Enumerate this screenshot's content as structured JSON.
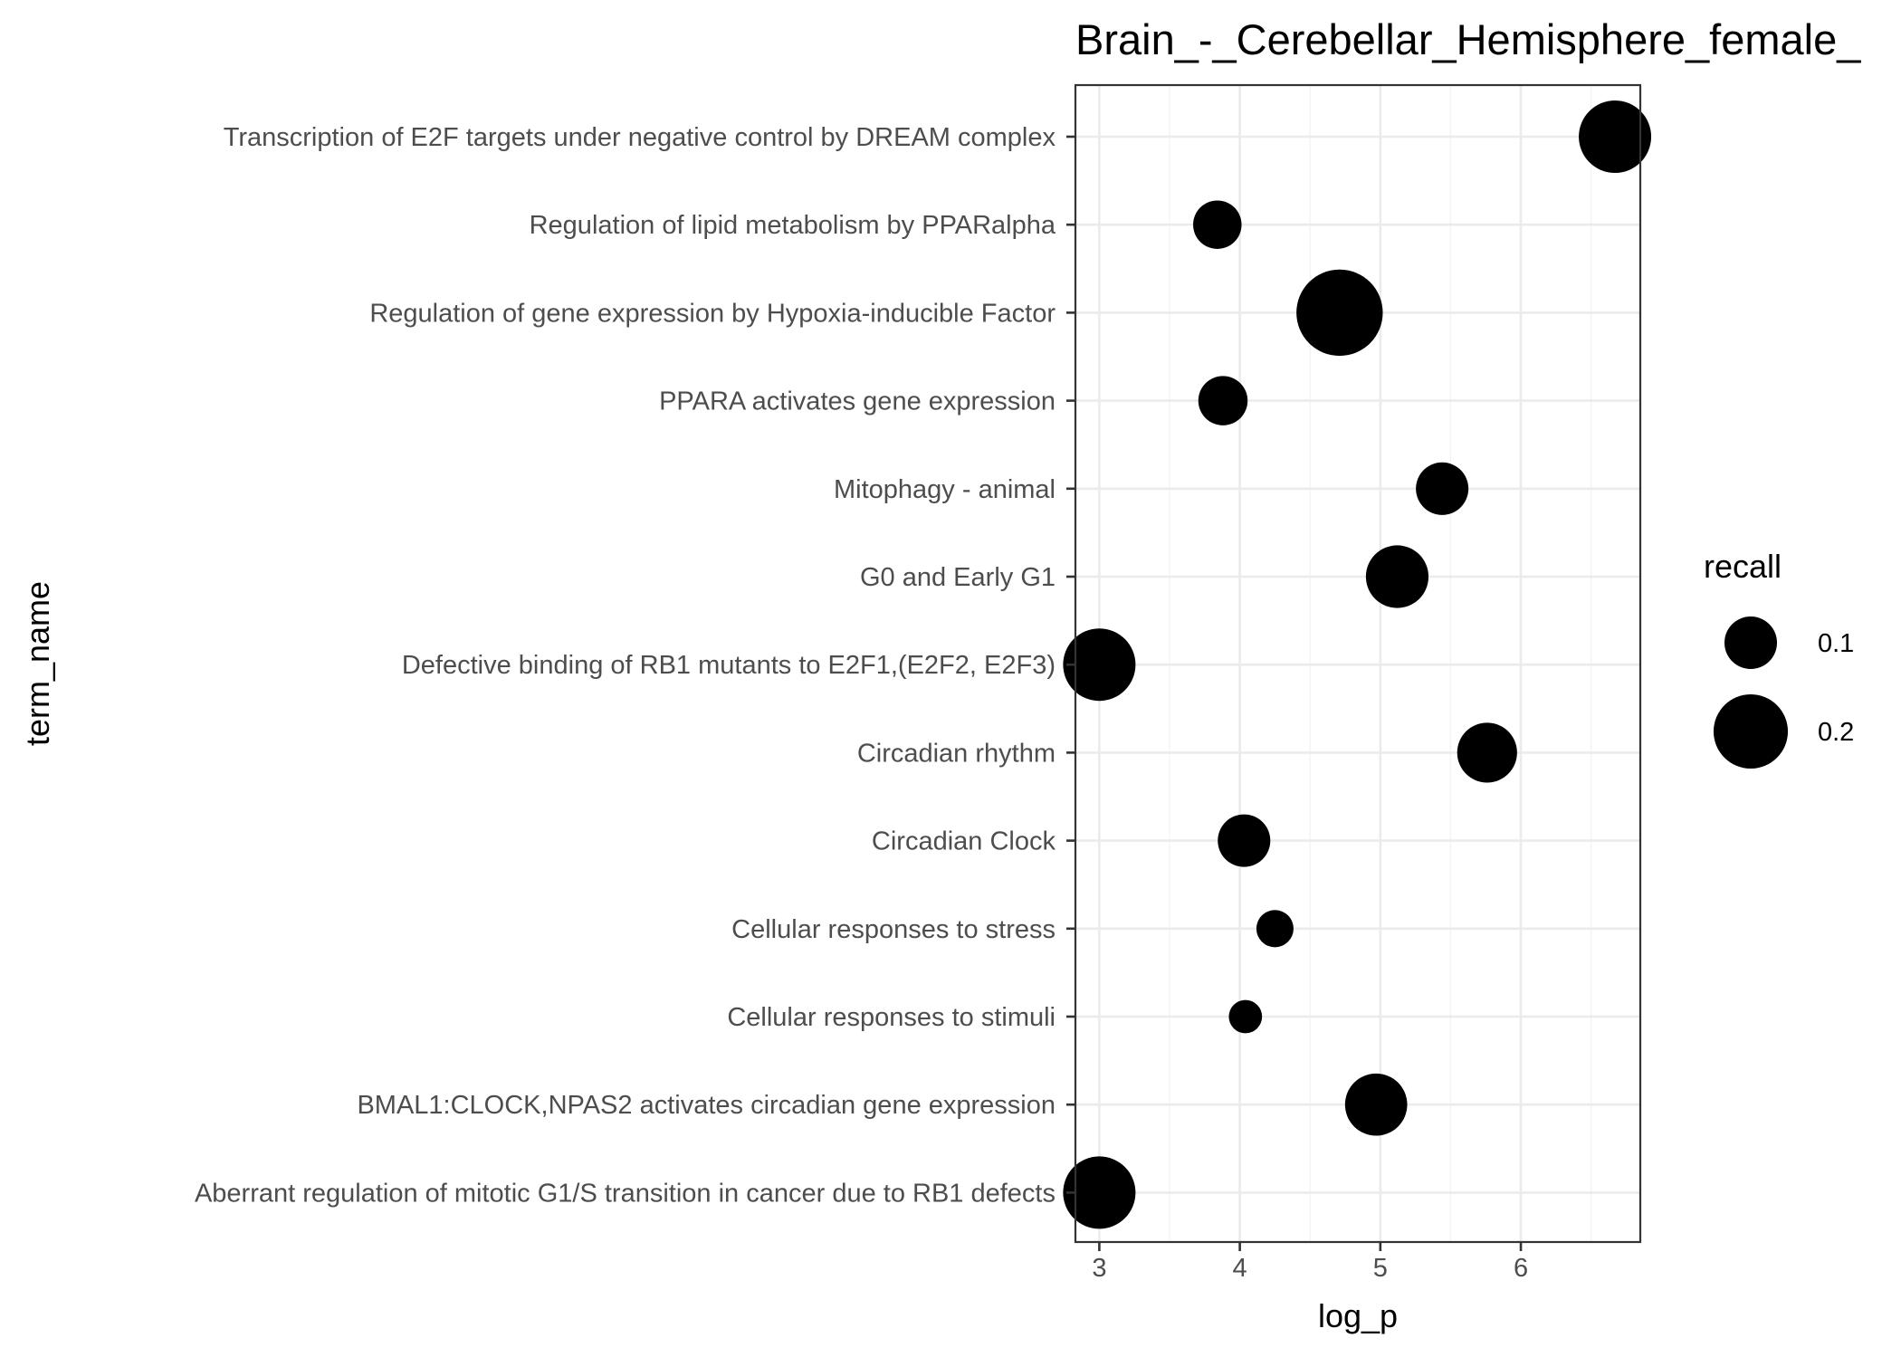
{
  "chart_data": {
    "type": "scatter",
    "title": "Brain_-_Cerebellar_Hemisphere_female_",
    "xlabel": "log_p",
    "ylabel": "term_name",
    "xlim": [
      2.83,
      6.85
    ],
    "x_ticks": [
      3,
      4,
      5,
      6
    ],
    "x_tick_labels": [
      "3",
      "4",
      "5",
      "6"
    ],
    "grid": true,
    "categories": [
      "Transcription of E2F targets under negative control by DREAM complex",
      "Regulation of lipid metabolism by PPARalpha",
      "Regulation of gene expression by Hypoxia-inducible Factor",
      "PPARA activates gene expression",
      "Mitophagy - animal",
      "G0 and Early G1",
      "Defective binding of RB1 mutants to E2F1,(E2F2, E2F3)",
      "Circadian rhythm",
      "Circadian Clock",
      "Cellular responses to stress",
      "Cellular responses to stimuli",
      "BMAL1:CLOCK,NPAS2 activates circadian gene expression",
      "Aberrant regulation of mitotic G1/S transition in cancer due to RB1 defects"
    ],
    "series": [
      {
        "x": [
          6.67,
          3.84,
          4.71,
          3.88,
          5.44,
          5.12,
          3.0,
          5.76,
          4.03,
          4.25,
          4.04,
          4.97,
          3.0
        ],
        "recall": [
          0.19,
          0.085,
          0.27,
          0.088,
          0.1,
          0.142,
          0.19,
          0.13,
          0.1,
          0.05,
          0.04,
          0.14,
          0.19
        ]
      }
    ],
    "legend": {
      "title": "recall",
      "placement": "right",
      "keys": [
        {
          "label": "0.1",
          "value": 0.1
        },
        {
          "label": "0.2",
          "value": 0.2
        }
      ]
    }
  }
}
